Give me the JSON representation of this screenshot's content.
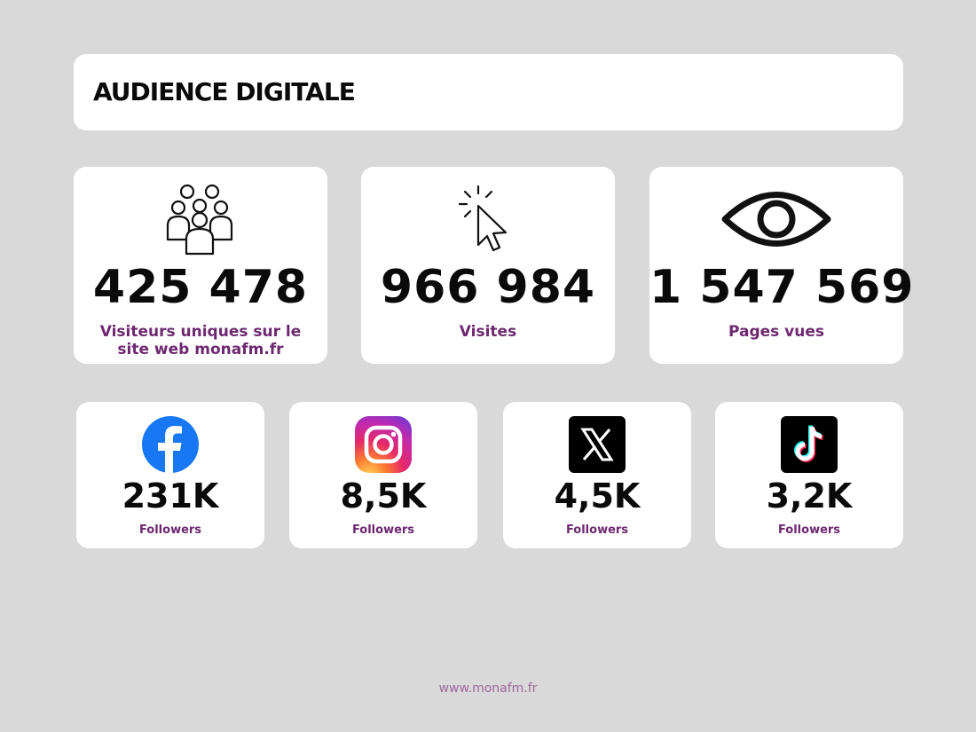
{
  "header": {
    "title": "AUDIENCE DIGITALE"
  },
  "stats": [
    {
      "icon": "people-group-icon",
      "value": "425 478",
      "label": "Visiteurs uniques sur le site web monafm.fr"
    },
    {
      "icon": "cursor-click-icon",
      "value": "966 984",
      "label": "Visites"
    },
    {
      "icon": "eye-icon",
      "value": "1 547 569",
      "label": "Pages vues"
    }
  ],
  "socials": [
    {
      "icon": "facebook-icon",
      "value": "231K",
      "label": "Followers",
      "color": "#1877f2"
    },
    {
      "icon": "instagram-icon",
      "value": "8,5K",
      "label": "Followers",
      "color": "#d6249f"
    },
    {
      "icon": "x-icon",
      "value": "4,5K",
      "label": "Followers",
      "color": "#000000"
    },
    {
      "icon": "tiktok-icon",
      "value": "3,2K",
      "label": "Followers",
      "color": "#000000"
    }
  ],
  "footer": {
    "url": "www.monafm.fr"
  },
  "colors": {
    "background": "#d9d9d9",
    "label": "#6d2870",
    "footer": "#a0649c"
  }
}
